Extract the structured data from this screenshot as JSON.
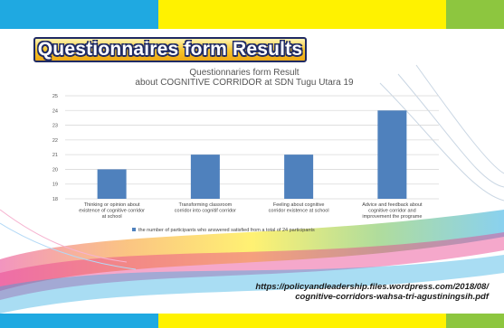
{
  "slide": {
    "heading": "Questionnaires form Results",
    "source_line1": "https://policyandleadership.files.wordpress.com/2018/08/",
    "source_line2": "cognitive-corridors-wahsa-tri-agustiningsih.pdf",
    "colors": {
      "strip": [
        "#1fa9e1",
        "#fff200",
        "#fff200",
        "#8dc63f"
      ],
      "badge_outline": "#1f2a63",
      "badge_fill": "#f7c52a",
      "bar": "#4f81bd"
    }
  },
  "chart_data": {
    "type": "bar",
    "title": "Questionnaries form Result",
    "subtitle": "about COGNITIVE CORRIDOR at SDN Tugu Utara 19",
    "categories": [
      [
        "Thinking or opinion about",
        "existence of cognitive corridor",
        "at school"
      ],
      [
        "Transforming classroom",
        "corridor into cognitif corridor"
      ],
      [
        "Feeling about cognitive",
        "corridor existence at school"
      ],
      [
        "Advice and feedback about",
        "cognitive corridor and",
        "improvement the programe"
      ]
    ],
    "series": [
      {
        "name": "the number of participants who answered satisfied from a total of 24 participants",
        "values": [
          20,
          21,
          21,
          24
        ]
      }
    ],
    "ylim": [
      18,
      25
    ],
    "yticks": [
      18,
      19,
      20,
      21,
      22,
      23,
      24,
      25
    ],
    "grid": true,
    "legend": "bottom"
  }
}
